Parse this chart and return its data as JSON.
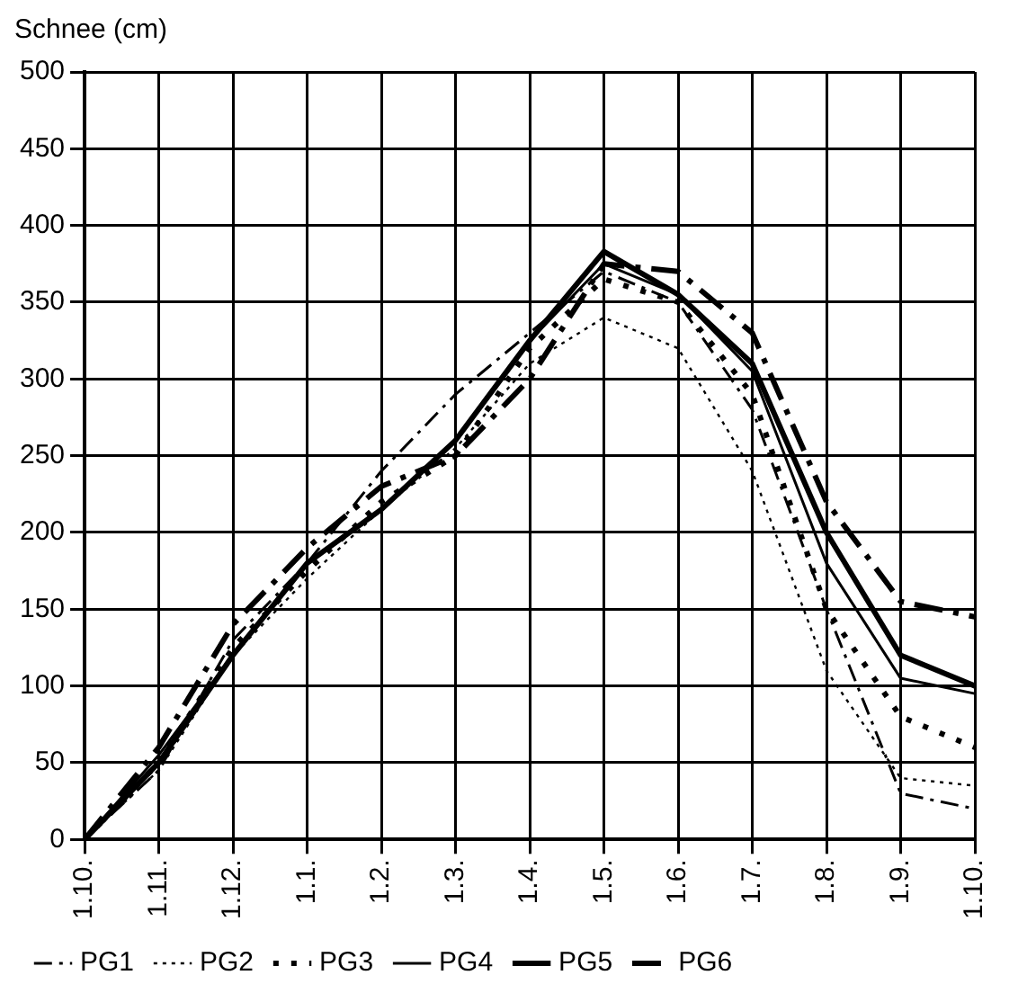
{
  "chart_data": {
    "type": "line",
    "ylabel": "Schnee (cm)",
    "categories": [
      "1.10.",
      "1.11.",
      "1.12.",
      "1.1.",
      "1.2.",
      "1.3.",
      "1.4.",
      "1.5.",
      "1.6.",
      "1.7.",
      "1.8.",
      "1.9.",
      "1.10."
    ],
    "series": [
      {
        "name": "PG1",
        "color": "#000000",
        "line_style": "dashed",
        "values": [
          0,
          45,
          130,
          180,
          240,
          290,
          330,
          370,
          350,
          280,
          150,
          30,
          20
        ]
      },
      {
        "name": "PG2",
        "color": "#000000",
        "line_style": "dotted",
        "values": [
          0,
          45,
          120,
          170,
          215,
          255,
          310,
          340,
          320,
          240,
          110,
          40,
          35
        ]
      },
      {
        "name": "PG3",
        "color": "#000000",
        "line_style": "dotted",
        "values": [
          0,
          50,
          125,
          175,
          220,
          250,
          320,
          365,
          350,
          290,
          150,
          80,
          60
        ]
      },
      {
        "name": "PG4",
        "color": "#000000",
        "line_style": "solid",
        "values": [
          0,
          55,
          120,
          180,
          215,
          260,
          325,
          375,
          355,
          305,
          180,
          105,
          95
        ]
      },
      {
        "name": "PG5",
        "color": "#000000",
        "line_style": "solid",
        "values": [
          0,
          50,
          120,
          180,
          215,
          260,
          325,
          383,
          355,
          310,
          200,
          120,
          100
        ]
      },
      {
        "name": "PG6",
        "color": "#000000",
        "line_style": "dashed",
        "values": [
          0,
          60,
          140,
          190,
          230,
          250,
          300,
          375,
          370,
          330,
          220,
          155,
          145
        ]
      }
    ],
    "ylim": [
      0,
      500
    ],
    "yticks": [
      0,
      50,
      100,
      150,
      200,
      250,
      300,
      350,
      400,
      450,
      500
    ],
    "grid": true,
    "legend": "bottom",
    "marker": "none"
  }
}
